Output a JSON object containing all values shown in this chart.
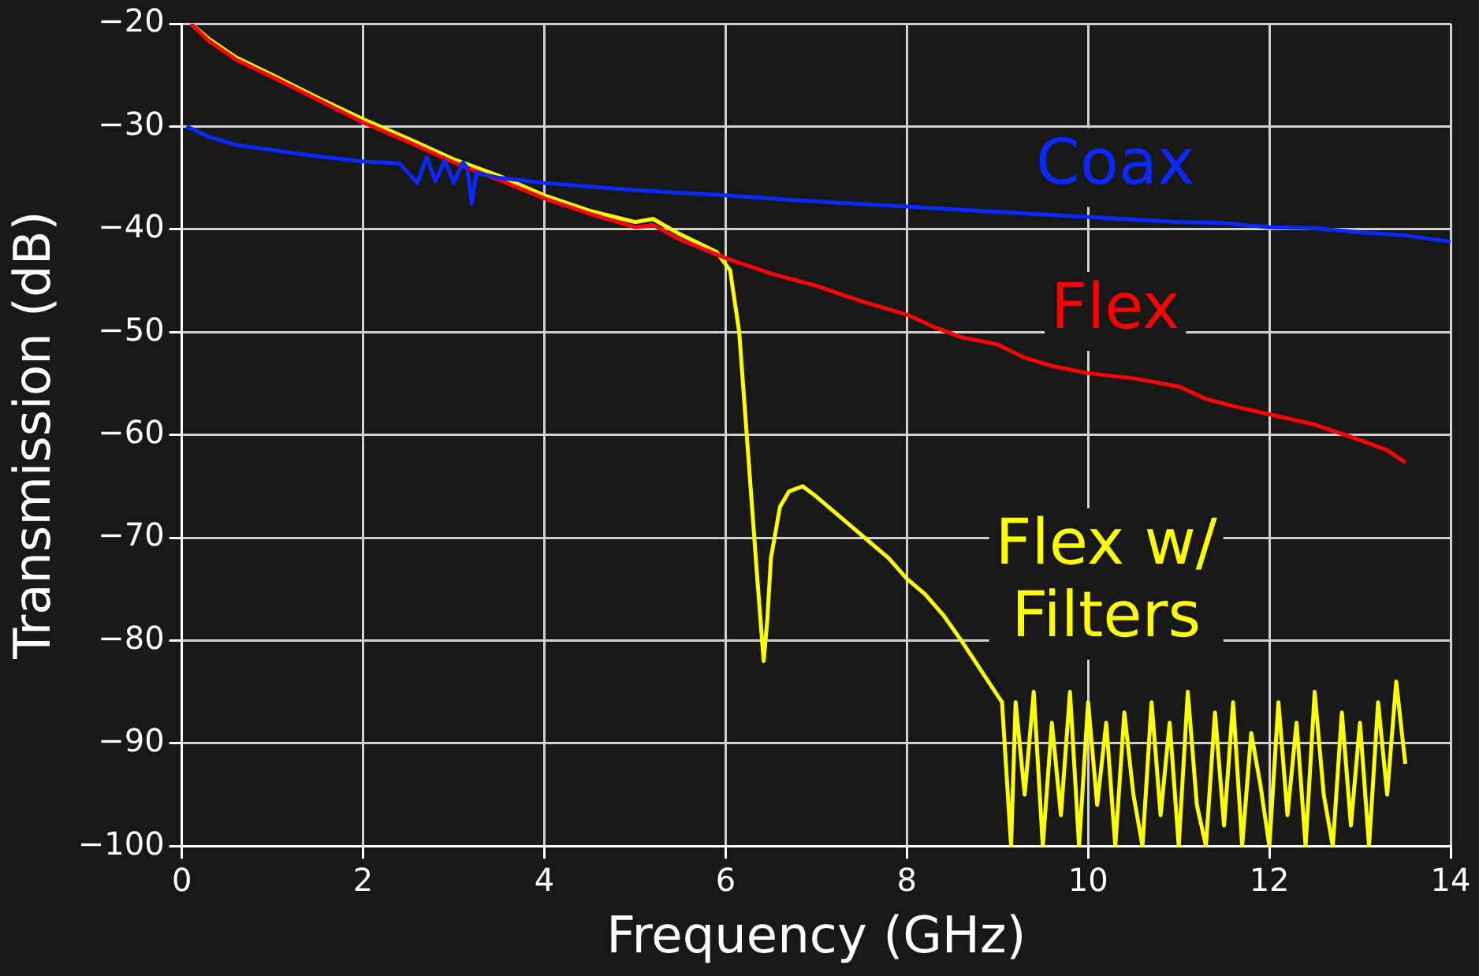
{
  "chart_data": {
    "type": "line",
    "xlabel": "Frequency (GHz)",
    "ylabel": "Transmission (dB)",
    "xlim": [
      0,
      14
    ],
    "ylim": [
      -100,
      -20
    ],
    "xticks": [
      0,
      2,
      4,
      6,
      8,
      10,
      12,
      14
    ],
    "yticks": [
      -100,
      -90,
      -80,
      -70,
      -60,
      -50,
      -40,
      -30,
      -20
    ],
    "grid": true,
    "legend": false,
    "marker": "none",
    "line_style": "solid",
    "series": [
      {
        "name": "Coax",
        "color": "#0a28ff",
        "x": [
          0.05,
          0.3,
          0.6,
          1,
          1.5,
          2,
          2.4,
          2.6,
          2.7,
          2.8,
          2.9,
          3.0,
          3.1,
          3.15,
          3.2,
          3.25,
          3.5,
          4,
          5,
          6,
          7,
          8,
          9,
          10,
          11,
          11.5,
          12,
          12.5,
          13,
          13.5,
          14
        ],
        "values": [
          -30,
          -31,
          -31.8,
          -32.3,
          -32.9,
          -33.4,
          -33.6,
          -35.5,
          -33,
          -35.3,
          -33.3,
          -35.5,
          -33.5,
          -34,
          -37.5,
          -34.5,
          -35,
          -35.5,
          -36.2,
          -36.7,
          -37.3,
          -37.8,
          -38.3,
          -38.8,
          -39.3,
          -39.4,
          -39.8,
          -39.9,
          -40.3,
          -40.6,
          -41.2
        ]
      },
      {
        "name": "Flex",
        "color": "#ff0000",
        "x": [
          0.1,
          0.3,
          0.6,
          1,
          1.5,
          2,
          2.5,
          3,
          3.5,
          4,
          4.5,
          5,
          5.2,
          5.5,
          6,
          6.5,
          7,
          7.5,
          8,
          8.3,
          8.6,
          9,
          9.3,
          9.6,
          10,
          10.5,
          11,
          11.3,
          11.6,
          12,
          12.5,
          13,
          13.3,
          13.5
        ],
        "values": [
          -20,
          -21.7,
          -23.5,
          -25.2,
          -27.4,
          -29.6,
          -31.5,
          -33.5,
          -35.2,
          -37,
          -38.5,
          -39.8,
          -39.6,
          -41,
          -42.8,
          -44.3,
          -45.5,
          -47,
          -48.3,
          -49.5,
          -50.5,
          -51.2,
          -52.5,
          -53.3,
          -54,
          -54.5,
          -55.3,
          -56.5,
          -57.2,
          -58,
          -59,
          -60.5,
          -61.5,
          -62.7
        ]
      },
      {
        "name": "Flex w/ Filters",
        "color": "#ffff00",
        "x": [
          0.1,
          0.3,
          0.6,
          1,
          1.5,
          2,
          2.5,
          3,
          3.5,
          4,
          4.5,
          5,
          5.2,
          5.5,
          5.9,
          6.05,
          6.15,
          6.25,
          6.35,
          6.42,
          6.46,
          6.5,
          6.6,
          6.7,
          6.85,
          7,
          7.2,
          7.4,
          7.6,
          7.8,
          8,
          8.2,
          8.4,
          8.6,
          8.75,
          8.9,
          9.05,
          9.15,
          9.2,
          9.3,
          9.4,
          9.5,
          9.6,
          9.7,
          9.8,
          9.9,
          10,
          10.1,
          10.2,
          10.3,
          10.4,
          10.5,
          10.6,
          10.7,
          10.8,
          10.9,
          11,
          11.1,
          11.2,
          11.3,
          11.4,
          11.5,
          11.6,
          11.7,
          11.8,
          11.9,
          12,
          12.1,
          12.2,
          12.3,
          12.4,
          12.5,
          12.6,
          12.7,
          12.8,
          12.9,
          13,
          13.1,
          13.2,
          13.3,
          13.4,
          13.5
        ],
        "values": [
          -20,
          -21.5,
          -23.3,
          -25,
          -27.2,
          -29.3,
          -31.2,
          -33.2,
          -34.8,
          -36.7,
          -38.2,
          -39.3,
          -39,
          -40.5,
          -42.2,
          -44,
          -50,
          -62,
          -74,
          -82,
          -78,
          -72,
          -67,
          -65.5,
          -65,
          -66,
          -67.5,
          -69,
          -70.5,
          -72,
          -74,
          -75.5,
          -77.5,
          -80,
          -82,
          -84,
          -86,
          -100,
          -86,
          -95,
          -85,
          -100,
          -88,
          -97,
          -85,
          -100,
          -86,
          -96,
          -88,
          -100,
          -87,
          -95,
          -100,
          -86,
          -97,
          -88,
          -100,
          -85,
          -96,
          -100,
          -87,
          -98,
          -86,
          -100,
          -89,
          -94,
          -100,
          -86,
          -97,
          -88,
          -100,
          -85,
          -95,
          -100,
          -87,
          -98,
          -88,
          -100,
          -86,
          -95,
          -84,
          -92
        ]
      }
    ]
  }
}
